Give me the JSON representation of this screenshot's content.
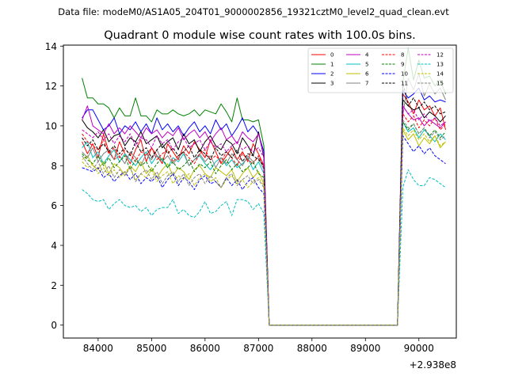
{
  "file_label": "Data file: modeM0/AS1A05_204T01_9000002856_19321cztM0_level2_quad_clean.evt",
  "chart_data": {
    "type": "line",
    "title": "Quadrant 0 module wise count rates with 100.0s bins.",
    "xlabel": "",
    "ylabel": "",
    "x_offset_label": "+2.938e8",
    "xlim": [
      83350,
      90700
    ],
    "ylim": [
      -0.65,
      14.05
    ],
    "x_ticks": [
      84000,
      85000,
      86000,
      87000,
      88000,
      89000,
      90000
    ],
    "x_tick_labels": [
      "84000",
      "85000",
      "86000",
      "87000",
      "88000",
      "89000",
      "90000"
    ],
    "y_ticks": [
      0,
      2,
      4,
      6,
      8,
      10,
      12,
      14
    ],
    "y_tick_labels": [
      "0",
      "2",
      "4",
      "6",
      "8",
      "10",
      "12",
      "14"
    ],
    "x_start": 83700,
    "x_step": 100,
    "legend_position": "top-right",
    "series": [
      {
        "name": "0",
        "color": "#ff0000",
        "dash": "solid",
        "values": [
          9.2,
          8.6,
          9.1,
          8.4,
          9.6,
          8.7,
          8.3,
          9.2,
          8.6,
          8.1,
          8.8,
          9.3,
          8.2,
          8.9,
          8.5,
          8.1,
          9.1,
          8.7,
          8.3,
          9.0,
          8.6,
          9.2,
          8.8,
          8.4,
          9.3,
          8.7,
          8.1,
          8.5,
          8.9,
          8.3,
          8.7,
          8.2,
          9.1,
          8.6,
          8.0,
          0,
          0,
          0,
          0,
          0,
          0,
          0,
          0,
          0,
          0,
          0,
          0,
          0,
          0,
          0,
          0,
          0,
          0,
          0,
          0,
          0,
          0,
          0,
          0,
          0,
          11.6,
          11.2,
          10.6,
          11.3,
          10.8,
          11.0,
          10.5,
          10.9,
          9.8
        ]
      },
      {
        "name": "1",
        "color": "#008000",
        "dash": "solid",
        "values": [
          12.4,
          11.4,
          11.4,
          11.1,
          11.1,
          10.9,
          10.4,
          10.9,
          10.5,
          10.5,
          11.4,
          10.5,
          10.5,
          10.2,
          10.8,
          10.6,
          10.6,
          10.8,
          10.6,
          10.5,
          10.6,
          10.8,
          10.5,
          10.8,
          10.7,
          10.6,
          11.1,
          10.7,
          10.2,
          11.4,
          10.3,
          10.3,
          10.2,
          10.3,
          9.0,
          0,
          0,
          0,
          0,
          0,
          0,
          0,
          0,
          0,
          0,
          0,
          0,
          0,
          0,
          0,
          0,
          0,
          0,
          0,
          0,
          0,
          0,
          0,
          0,
          0,
          12.2,
          13.9,
          12.3,
          13.3,
          12.4,
          12.5,
          12.0,
          12.3,
          11.6
        ]
      },
      {
        "name": "2",
        "color": "#0000ff",
        "dash": "solid",
        "values": [
          10.4,
          10.8,
          10.8,
          10.3,
          9.8,
          10.0,
          10.4,
          9.6,
          10.0,
          9.8,
          10.2,
          9.7,
          10.1,
          9.6,
          10.4,
          9.8,
          10.1,
          9.7,
          10.0,
          9.5,
          9.9,
          10.2,
          9.7,
          10.0,
          9.6,
          10.3,
          9.8,
          10.1,
          9.5,
          9.9,
          10.4,
          9.7,
          10.0,
          9.6,
          8.7,
          0,
          0,
          0,
          0,
          0,
          0,
          0,
          0,
          0,
          0,
          0,
          0,
          0,
          0,
          0,
          0,
          0,
          0,
          0,
          0,
          0,
          0,
          0,
          0,
          0,
          11.8,
          11.4,
          11.6,
          11.9,
          11.3,
          11.5,
          11.2,
          11.3,
          11.2
        ]
      },
      {
        "name": "3",
        "color": "#000000",
        "dash": "solid",
        "values": [
          10.3,
          9.9,
          9.7,
          9.4,
          9.8,
          9.2,
          9.5,
          9.6,
          9.0,
          9.4,
          9.2,
          9.7,
          9.1,
          9.3,
          9.5,
          8.9,
          9.2,
          9.4,
          8.8,
          9.6,
          9.1,
          9.3,
          8.7,
          9.2,
          9.5,
          9.0,
          8.8,
          9.3,
          9.1,
          8.6,
          9.4,
          9.0,
          8.5,
          9.7,
          8.4,
          0,
          0,
          0,
          0,
          0,
          0,
          0,
          0,
          0,
          0,
          0,
          0,
          0,
          0,
          0,
          0,
          0,
          0,
          0,
          0,
          0,
          0,
          0,
          0,
          0,
          11.3,
          11.0,
          10.8,
          10.9,
          10.4,
          10.7,
          10.5,
          10.2,
          10.5
        ]
      },
      {
        "name": "4",
        "color": "#bf00bf",
        "dash": "solid",
        "values": [
          10.3,
          11.0,
          10.0,
          9.8,
          9.6,
          10.1,
          9.6,
          9.9,
          9.6,
          10.0,
          9.7,
          9.4,
          9.9,
          9.6,
          9.8,
          9.4,
          9.7,
          9.5,
          9.9,
          9.3,
          9.6,
          9.8,
          9.4,
          9.7,
          9.2,
          9.6,
          9.9,
          9.3,
          9.5,
          9.1,
          9.7,
          9.4,
          9.2,
          9.6,
          8.5,
          0,
          0,
          0,
          0,
          0,
          0,
          0,
          0,
          0,
          0,
          0,
          0,
          0,
          0,
          0,
          0,
          0,
          0,
          0,
          0,
          0,
          0,
          0,
          0,
          0,
          11.0,
          10.6,
          10.3,
          10.4,
          10.0,
          10.3,
          10.1,
          9.9,
          10.2
        ]
      },
      {
        "name": "5",
        "color": "#00bfbf",
        "dash": "solid",
        "values": [
          8.9,
          9.2,
          8.4,
          8.7,
          8.1,
          8.5,
          8.8,
          8.2,
          8.6,
          8.3,
          8.0,
          8.4,
          8.7,
          8.1,
          8.5,
          8.3,
          7.9,
          8.4,
          8.2,
          8.6,
          8.0,
          8.3,
          8.5,
          8.1,
          7.8,
          8.2,
          8.4,
          8.0,
          8.3,
          7.9,
          8.1,
          8.4,
          7.8,
          8.2,
          7.6,
          0,
          0,
          0,
          0,
          0,
          0,
          0,
          0,
          0,
          0,
          0,
          0,
          0,
          0,
          0,
          0,
          0,
          0,
          0,
          0,
          0,
          0,
          0,
          0,
          0,
          10.2,
          9.7,
          9.9,
          9.4,
          9.8,
          9.5,
          9.2,
          9.6,
          9.3
        ]
      },
      {
        "name": "6",
        "color": "#bfbf00",
        "dash": "solid",
        "values": [
          8.3,
          8.5,
          8.0,
          7.8,
          8.2,
          7.6,
          8.1,
          7.9,
          7.5,
          8.0,
          7.7,
          8.2,
          7.6,
          7.9,
          7.4,
          7.8,
          8.1,
          7.5,
          7.9,
          7.7,
          7.3,
          7.8,
          8.0,
          7.6,
          7.4,
          7.9,
          7.7,
          7.5,
          7.8,
          7.2,
          7.6,
          7.9,
          7.4,
          7.7,
          7.1,
          0,
          0,
          0,
          0,
          0,
          0,
          0,
          0,
          0,
          0,
          0,
          0,
          0,
          0,
          0,
          0,
          0,
          0,
          0,
          0,
          0,
          0,
          0,
          0,
          0,
          9.8,
          9.3,
          9.6,
          9.0,
          9.4,
          9.1,
          9.5,
          8.9,
          9.2
        ]
      },
      {
        "name": "7",
        "color": "#808080",
        "dash": "solid",
        "values": [
          8.7,
          8.4,
          8.9,
          8.2,
          8.6,
          8.8,
          8.3,
          8.5,
          8.1,
          8.7,
          8.4,
          8.0,
          8.6,
          8.3,
          8.8,
          8.2,
          8.5,
          8.1,
          8.4,
          8.7,
          8.0,
          8.3,
          8.6,
          8.2,
          8.5,
          7.9,
          8.4,
          8.1,
          8.6,
          8.3,
          8.0,
          8.5,
          8.2,
          8.4,
          7.8,
          0,
          0,
          0,
          0,
          0,
          0,
          0,
          0,
          0,
          0,
          0,
          0,
          0,
          0,
          0,
          0,
          0,
          0,
          0,
          0,
          0,
          0,
          0,
          0,
          0,
          10.5,
          12.4,
          11.8,
          12.6,
          11.5,
          12.1,
          11.6,
          11.9,
          11.3
        ]
      },
      {
        "name": "8",
        "color": "#ff0000",
        "dash": "dashed",
        "values": [
          9.6,
          9.2,
          9.0,
          8.8,
          9.3,
          8.6,
          8.9,
          8.4,
          8.8,
          8.6,
          8.2,
          8.7,
          8.5,
          8.9,
          8.3,
          8.6,
          8.8,
          8.2,
          8.5,
          8.7,
          8.4,
          8.1,
          8.6,
          8.8,
          8.3,
          8.5,
          8.2,
          8.7,
          8.4,
          8.0,
          8.6,
          8.3,
          8.1,
          8.5,
          7.9,
          0,
          0,
          0,
          0,
          0,
          0,
          0,
          0,
          0,
          0,
          0,
          0,
          0,
          0,
          0,
          0,
          0,
          0,
          0,
          0,
          0,
          0,
          0,
          0,
          0,
          10.6,
          10.2,
          10.5,
          9.9,
          10.3,
          10.0,
          10.4,
          9.8,
          10.1
        ]
      },
      {
        "name": "9",
        "color": "#008000",
        "dash": "dashed",
        "values": [
          8.6,
          8.3,
          8.1,
          8.5,
          8.0,
          8.4,
          7.9,
          8.2,
          8.5,
          7.8,
          8.3,
          8.0,
          8.2,
          7.7,
          8.1,
          8.4,
          7.9,
          8.2,
          7.8,
          8.0,
          8.3,
          7.7,
          8.1,
          7.9,
          8.2,
          7.6,
          8.0,
          8.3,
          7.8,
          8.1,
          7.7,
          7.9,
          8.2,
          7.6,
          7.4,
          0,
          0,
          0,
          0,
          0,
          0,
          0,
          0,
          0,
          0,
          0,
          0,
          0,
          0,
          0,
          0,
          0,
          0,
          0,
          0,
          0,
          0,
          0,
          0,
          0,
          10.2,
          9.8,
          10.1,
          9.6,
          9.9,
          9.5,
          9.8,
          9.4,
          9.7
        ]
      },
      {
        "name": "10",
        "color": "#0000ff",
        "dash": "dashed",
        "values": [
          7.9,
          7.8,
          7.7,
          7.9,
          7.4,
          7.6,
          7.2,
          7.5,
          7.7,
          7.3,
          7.6,
          7.1,
          7.4,
          7.2,
          7.5,
          6.9,
          7.3,
          7.6,
          7.0,
          7.4,
          7.2,
          6.8,
          7.3,
          7.5,
          7.1,
          7.2,
          6.9,
          7.4,
          7.0,
          7.3,
          6.8,
          7.2,
          7.4,
          6.9,
          6.6,
          0,
          0,
          0,
          0,
          0,
          0,
          0,
          0,
          0,
          0,
          0,
          0,
          0,
          0,
          0,
          0,
          0,
          0,
          0,
          0,
          0,
          0,
          0,
          0,
          0,
          9.5,
          9.1,
          8.7,
          9.0,
          8.6,
          8.9,
          8.5,
          8.3,
          8.1
        ]
      },
      {
        "name": "11",
        "color": "#000000",
        "dash": "dashed",
        "values": [
          9.4,
          9.0,
          9.3,
          8.8,
          9.1,
          8.7,
          9.0,
          8.6,
          8.9,
          8.5,
          9.2,
          8.7,
          8.9,
          8.4,
          8.8,
          9.1,
          8.6,
          8.9,
          8.5,
          8.7,
          9.0,
          8.4,
          8.8,
          8.6,
          8.3,
          8.9,
          8.5,
          8.7,
          8.4,
          8.8,
          8.2,
          8.6,
          8.5,
          8.3,
          8.0,
          0,
          0,
          0,
          0,
          0,
          0,
          0,
          0,
          0,
          0,
          0,
          0,
          0,
          0,
          0,
          0,
          0,
          0,
          0,
          0,
          0,
          0,
          0,
          0,
          0,
          12.2,
          11.0,
          11.4,
          10.9,
          11.2,
          10.8,
          11.0,
          10.6,
          10.7
        ]
      },
      {
        "name": "12",
        "color": "#bf00bf",
        "dash": "dashed",
        "values": [
          9.8,
          9.6,
          9.4,
          9.7,
          9.3,
          9.6,
          9.1,
          9.5,
          9.2,
          9.6,
          9.0,
          9.4,
          9.3,
          8.9,
          9.5,
          9.1,
          9.3,
          8.8,
          9.2,
          9.4,
          8.9,
          9.1,
          9.3,
          8.8,
          9.2,
          8.9,
          9.1,
          8.7,
          9.0,
          9.2,
          8.8,
          9.0,
          8.7,
          8.9,
          8.4,
          0,
          0,
          0,
          0,
          0,
          0,
          0,
          0,
          0,
          0,
          0,
          0,
          0,
          0,
          0,
          0,
          0,
          0,
          0,
          0,
          0,
          0,
          0,
          0,
          0,
          11.0,
          10.6,
          10.8,
          10.3,
          10.6,
          10.2,
          10.4,
          10.0,
          10.2
        ]
      },
      {
        "name": "13",
        "color": "#00bfbf",
        "dash": "dashed",
        "values": [
          6.8,
          6.6,
          6.3,
          6.2,
          6.3,
          5.8,
          6.1,
          6.3,
          6.0,
          5.9,
          6.0,
          5.7,
          5.9,
          5.5,
          5.8,
          5.9,
          5.9,
          6.3,
          5.6,
          5.8,
          5.5,
          5.4,
          5.7,
          6.2,
          5.6,
          5.7,
          6.0,
          6.2,
          5.5,
          6.3,
          6.3,
          6.2,
          5.8,
          6.1,
          5.6,
          0,
          0,
          0,
          0,
          0,
          0,
          0,
          0,
          0,
          0,
          0,
          0,
          0,
          0,
          0,
          0,
          0,
          0,
          0,
          0,
          0,
          0,
          0,
          0,
          0,
          6.9,
          7.8,
          7.3,
          7.0,
          7.0,
          7.4,
          7.3,
          7.1,
          6.9
        ]
      },
      {
        "name": "14",
        "color": "#bfbf00",
        "dash": "dashed",
        "values": [
          8.2,
          7.9,
          8.1,
          7.6,
          7.9,
          7.5,
          7.8,
          7.4,
          7.7,
          7.9,
          7.3,
          7.6,
          7.4,
          7.8,
          7.2,
          7.5,
          7.7,
          7.1,
          7.5,
          7.3,
          7.6,
          7.0,
          7.4,
          7.6,
          7.2,
          7.4,
          6.9,
          7.3,
          7.5,
          7.1,
          7.3,
          6.9,
          7.2,
          7.4,
          7.0,
          0,
          0,
          0,
          0,
          0,
          0,
          0,
          0,
          0,
          0,
          0,
          0,
          0,
          0,
          0,
          0,
          0,
          0,
          0,
          0,
          0,
          0,
          0,
          0,
          0,
          9.9,
          9.5,
          9.8,
          9.3,
          9.6,
          9.2,
          9.5,
          9.0,
          9.2
        ]
      },
      {
        "name": "15",
        "color": "#808080",
        "dash": "dashed",
        "values": [
          8.5,
          8.1,
          7.8,
          8.2,
          7.6,
          8.0,
          7.4,
          7.8,
          7.5,
          7.9,
          7.2,
          7.6,
          7.8,
          7.3,
          7.7,
          7.1,
          7.5,
          7.7,
          7.2,
          7.6,
          7.0,
          7.4,
          7.6,
          7.1,
          7.5,
          7.2,
          6.9,
          7.4,
          7.6,
          7.0,
          7.3,
          7.5,
          7.1,
          7.3,
          6.9,
          0,
          0,
          0,
          0,
          0,
          0,
          0,
          0,
          0,
          0,
          0,
          0,
          0,
          0,
          0,
          0,
          0,
          0,
          0,
          0,
          0,
          0,
          0,
          0,
          0,
          10.3,
          9.9,
          10.1,
          9.6,
          9.9,
          9.4,
          9.7,
          9.3,
          9.5
        ]
      }
    ]
  }
}
